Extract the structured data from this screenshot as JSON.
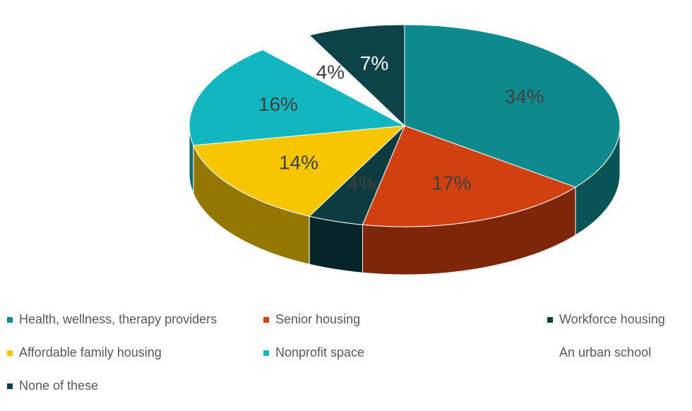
{
  "chart_data": {
    "type": "pie",
    "categories": [
      "Health, wellness, therapy providers",
      "Senior housing",
      "Workforce housing",
      "Affordable family housing",
      "Nonprofit space",
      "An urban school",
      "None of these"
    ],
    "values": [
      34,
      17,
      4,
      14,
      16,
      4,
      7
    ],
    "value_labels": [
      "34%",
      "17%",
      "4%",
      "14%",
      "16%",
      "4%",
      "7%"
    ],
    "colors": [
      "#0e8a8c",
      "#d04010",
      "#0c3c42",
      "#f7c600",
      "#12b6be",
      "#ffffff",
      "#0c4248"
    ],
    "legend": "bottom"
  }
}
